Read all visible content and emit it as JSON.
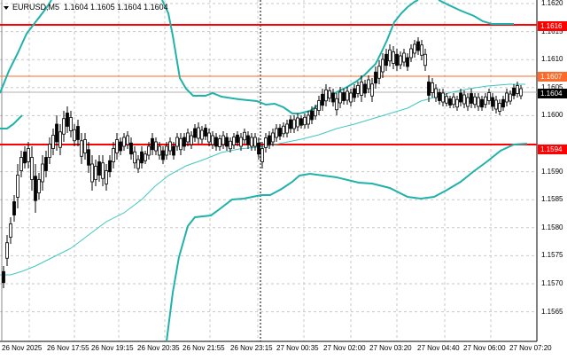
{
  "header": {
    "symbol": "EURUSD,M5",
    "ohlc": "1.1604 1.1605 1.1604 1.1604"
  },
  "colors": {
    "band": "#20b2aa",
    "middle": "#40c8c0",
    "level_red": "#ff0000",
    "level_orange": "#ff6a2a",
    "bid_tag": "#000000",
    "grid": "#c8c8c8"
  },
  "price_axis": {
    "ticks": [
      "1.1620",
      "1.1615",
      "1.1610",
      "1.1605",
      "1.1600",
      "1.1590",
      "1.1585",
      "1.1580",
      "1.1575",
      "1.1570",
      "1.1565"
    ]
  },
  "price_tags": [
    {
      "value": "1.1616",
      "color": "#ff0000"
    },
    {
      "value": "1.1607",
      "color": "#ff6a2a"
    },
    {
      "value": "1.1604",
      "color": "#000000"
    },
    {
      "value": "1.1594",
      "color": "#ff0000"
    }
  ],
  "time_axis": {
    "ticks": [
      "26 Nov 2025",
      "26 Nov 17:55",
      "26 Nov 19:15",
      "26 Nov 20:35",
      "26 Nov 21:55",
      "26 Nov 23:15",
      "27 Nov 00:35",
      "27 Nov 02:00",
      "27 Nov 03:20",
      "27 Nov 04:40",
      "27 Nov 06:00",
      "27 Nov 07:20"
    ]
  },
  "levels": {
    "resistance": "1.1616",
    "pivot": "1.1607",
    "support": "1.1594",
    "bid": "1.1604"
  }
}
